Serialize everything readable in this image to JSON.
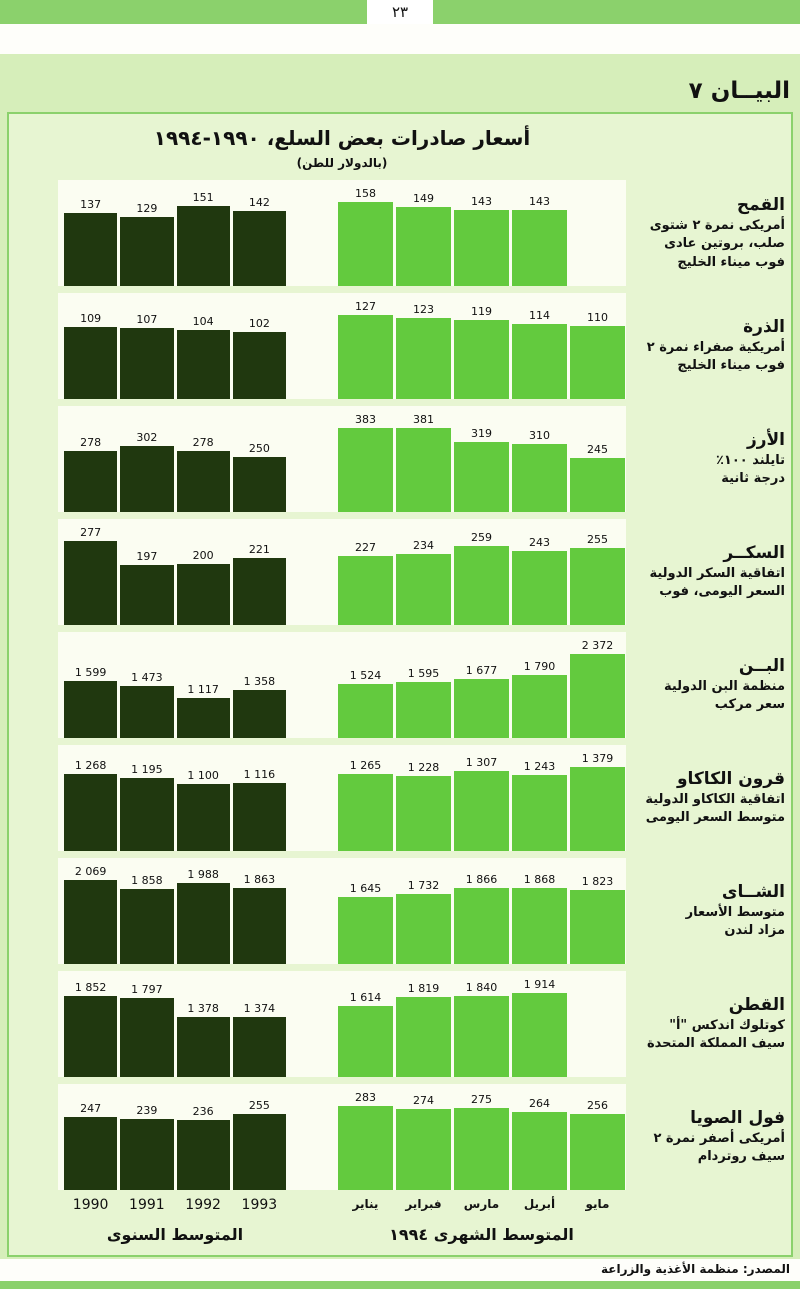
{
  "page": {
    "page_number": "٢٣",
    "figure_label": "البيــان ٧",
    "title": "أسعار صادرات بعض السلع، ١٩٩٠-١٩٩٤",
    "subtitle": "(بالدولار للطن)",
    "source": "المصدر: منظمة الأغذية والزراعة"
  },
  "axis": {
    "annual_label": "المتوسط السنوى",
    "monthly_label": "المتوسط الشهرى ١٩٩٤"
  },
  "colors": {
    "accent_green": "#8bd16c",
    "annual_bar": "#20380f",
    "monthly_bar": "#63ca3e"
  },
  "chart_data": {
    "type": "bar",
    "title": "أسعار صادرات بعض السلع، ١٩٩٠-١٩٩٤",
    "unit": "بالدولار للطن",
    "annual_categories": [
      "1990",
      "1991",
      "1992",
      "1993"
    ],
    "monthly_categories": [
      "يناير",
      "فبراير",
      "مارس",
      "أبريل",
      "مايو"
    ],
    "rows": [
      {
        "name": "القمح",
        "description": [
          "أمريكى نمرة ٢ شتوى",
          "صلب، بروتين عادى",
          "فوب ميناء الخليج"
        ],
        "annual": [
          137,
          129,
          151,
          142
        ],
        "monthly": [
          158,
          149,
          143,
          143,
          null
        ]
      },
      {
        "name": "الذرة",
        "description": [
          "أمريكية صفراء نمرة ٢",
          "فوب ميناء الخليج"
        ],
        "annual": [
          109,
          107,
          104,
          102
        ],
        "monthly": [
          127,
          123,
          119,
          114,
          110
        ]
      },
      {
        "name": "الأرز",
        "description": [
          "تايلند ١٠٠٪",
          "درجة ثانية"
        ],
        "annual": [
          278,
          302,
          278,
          250
        ],
        "monthly": [
          383,
          381,
          319,
          310,
          245
        ]
      },
      {
        "name": "السكــر",
        "description": [
          "اتفاقية السكر الدولية",
          "السعر اليومى، فوب"
        ],
        "annual": [
          277,
          197,
          200,
          221
        ],
        "monthly": [
          227,
          234,
          259,
          243,
          255
        ]
      },
      {
        "name": "البــن",
        "description": [
          "منظمة البن الدولية",
          "سعر مركب"
        ],
        "annual": [
          1599,
          1473,
          1117,
          1358
        ],
        "monthly": [
          1524,
          1595,
          1677,
          1790,
          2372
        ]
      },
      {
        "name": "قرون الكاكاو",
        "description": [
          "اتفاقية الكاكاو الدولية",
          "متوسط السعر اليومى"
        ],
        "annual": [
          1268,
          1195,
          1100,
          1116
        ],
        "monthly": [
          1265,
          1228,
          1307,
          1243,
          1379
        ]
      },
      {
        "name": "الشــاى",
        "description": [
          "متوسط الأسعار",
          "مزاد لندن"
        ],
        "annual": [
          2069,
          1858,
          1988,
          1863
        ],
        "monthly": [
          1645,
          1732,
          1866,
          1868,
          1823
        ]
      },
      {
        "name": "القطن",
        "description": [
          "كوتلوك اندكس \"أ\"",
          "سيف المملكة المتحدة"
        ],
        "annual": [
          1852,
          1797,
          1378,
          1374
        ],
        "monthly": [
          1614,
          1819,
          1840,
          1914,
          null
        ]
      },
      {
        "name": "فول الصويا",
        "description": [
          "أمريكى أصفر نمرة ٢",
          "سيف روتردام"
        ],
        "annual": [
          247,
          239,
          236,
          255
        ],
        "monthly": [
          283,
          274,
          275,
          264,
          256
        ]
      }
    ]
  }
}
